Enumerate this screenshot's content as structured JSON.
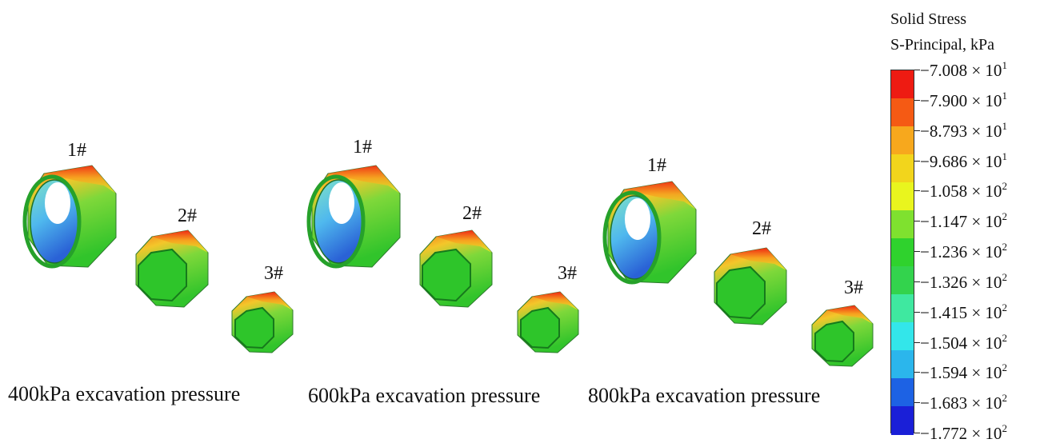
{
  "legend": {
    "title_line1": "Solid Stress",
    "title_line2": "S-Principal, kPa",
    "ticks": [
      {
        "mantissa": "−7.008 × 10",
        "exp": "1"
      },
      {
        "mantissa": "−7.900 × 10",
        "exp": "1"
      },
      {
        "mantissa": "−8.793 × 10",
        "exp": "1"
      },
      {
        "mantissa": "−9.686 × 10",
        "exp": "1"
      },
      {
        "mantissa": "−1.058 × 10",
        "exp": "2"
      },
      {
        "mantissa": "−1.147 × 10",
        "exp": "2"
      },
      {
        "mantissa": "−1.236 × 10",
        "exp": "2"
      },
      {
        "mantissa": "−1.326 × 10",
        "exp": "2"
      },
      {
        "mantissa": "−1.415 × 10",
        "exp": "2"
      },
      {
        "mantissa": "−1.504 × 10",
        "exp": "2"
      },
      {
        "mantissa": "−1.594 × 10",
        "exp": "2"
      },
      {
        "mantissa": "−1.683 × 10",
        "exp": "2"
      },
      {
        "mantissa": "−1.772 × 10",
        "exp": "2"
      }
    ],
    "colors": [
      "#ee1b12",
      "#f55a14",
      "#f7a81d",
      "#f2d51c",
      "#e9f51e",
      "#7fe12f",
      "#2fd22d",
      "#33d34d",
      "#3fe8a0",
      "#33e6ea",
      "#2bb6ec",
      "#1d62e4",
      "#1a1fd7"
    ]
  },
  "panels": [
    {
      "caption": "400kPa excavation pressure",
      "rings": [
        "1#",
        "2#",
        "3#"
      ]
    },
    {
      "caption": "600kPa excavation pressure",
      "rings": [
        "1#",
        "2#",
        "3#"
      ]
    },
    {
      "caption": "800kPa excavation pressure",
      "rings": [
        "1#",
        "2#",
        "3#"
      ]
    }
  ]
}
